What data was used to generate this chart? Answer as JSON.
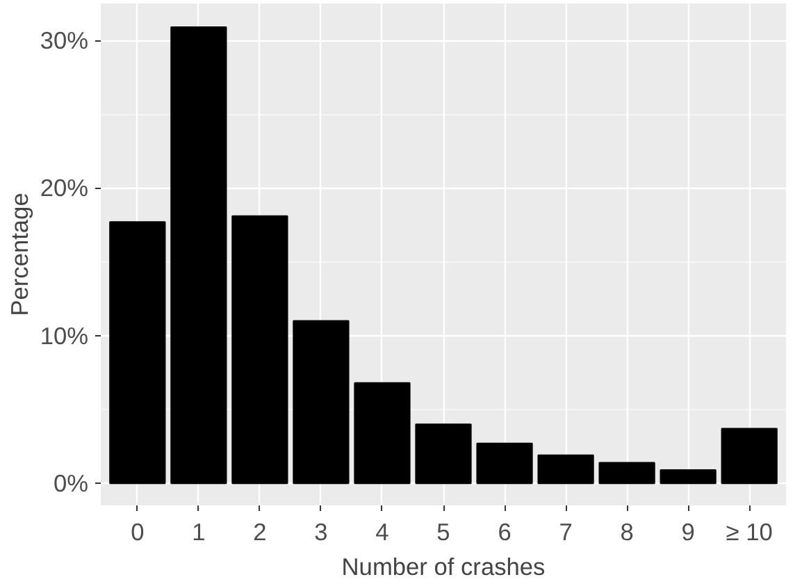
{
  "chart_data": {
    "type": "bar",
    "xlabel": "Number of crashes",
    "ylabel": "Percentage",
    "categories": [
      "0",
      "1",
      "2",
      "3",
      "4",
      "5",
      "6",
      "7",
      "8",
      "9",
      "≥ 10"
    ],
    "values": [
      17.7,
      30.9,
      18.1,
      11.0,
      6.8,
      4.0,
      2.7,
      1.9,
      1.4,
      0.9,
      3.7
    ],
    "color": "#000000",
    "ylim": [
      -1.5,
      32.5
    ],
    "yticks": [
      {
        "value": 0,
        "label": "0%"
      },
      {
        "value": 10,
        "label": "10%"
      },
      {
        "value": 20,
        "label": "20%"
      },
      {
        "value": 30,
        "label": "30%"
      }
    ],
    "grid": true
  }
}
